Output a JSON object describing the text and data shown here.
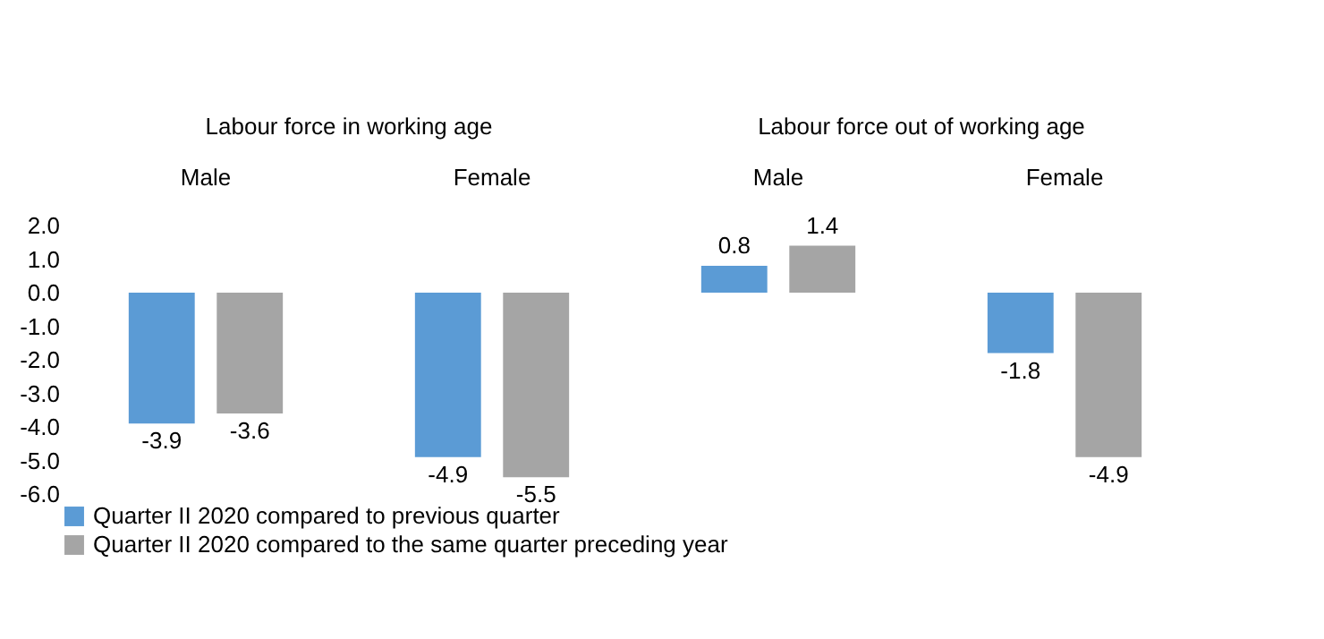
{
  "chart_data": {
    "type": "bar",
    "categories": [
      "Male",
      "Female",
      "Male",
      "Female"
    ],
    "annotations": [
      "Labour force in working age",
      "Labour force out of working age"
    ],
    "series": [
      {
        "name": "Quarter II 2020 compared to previous quarter",
        "color": "#5b9bd5",
        "values": [
          -3.9,
          -4.9,
          0.8,
          -1.8
        ]
      },
      {
        "name": "Quarter II 2020 compared to the same quarter preceding year",
        "color": "#a5a5a5",
        "values": [
          -3.6,
          -5.5,
          1.4,
          -4.9
        ]
      }
    ],
    "ylim": [
      -6,
      2
    ],
    "yticks": [
      {
        "value": 2,
        "label": "2.0"
      },
      {
        "value": 1,
        "label": "1.0"
      },
      {
        "value": 0,
        "label": "0.0"
      },
      {
        "value": -1,
        "label": "-1.0"
      },
      {
        "value": -2,
        "label": "-2.0"
      },
      {
        "value": -3,
        "label": "-3.0"
      },
      {
        "value": -4,
        "label": "-4.0"
      },
      {
        "value": -5,
        "label": "-5.0"
      },
      {
        "value": -6,
        "label": "-6.0"
      }
    ],
    "data_labels": true,
    "grid": false,
    "legend": "bottom"
  }
}
